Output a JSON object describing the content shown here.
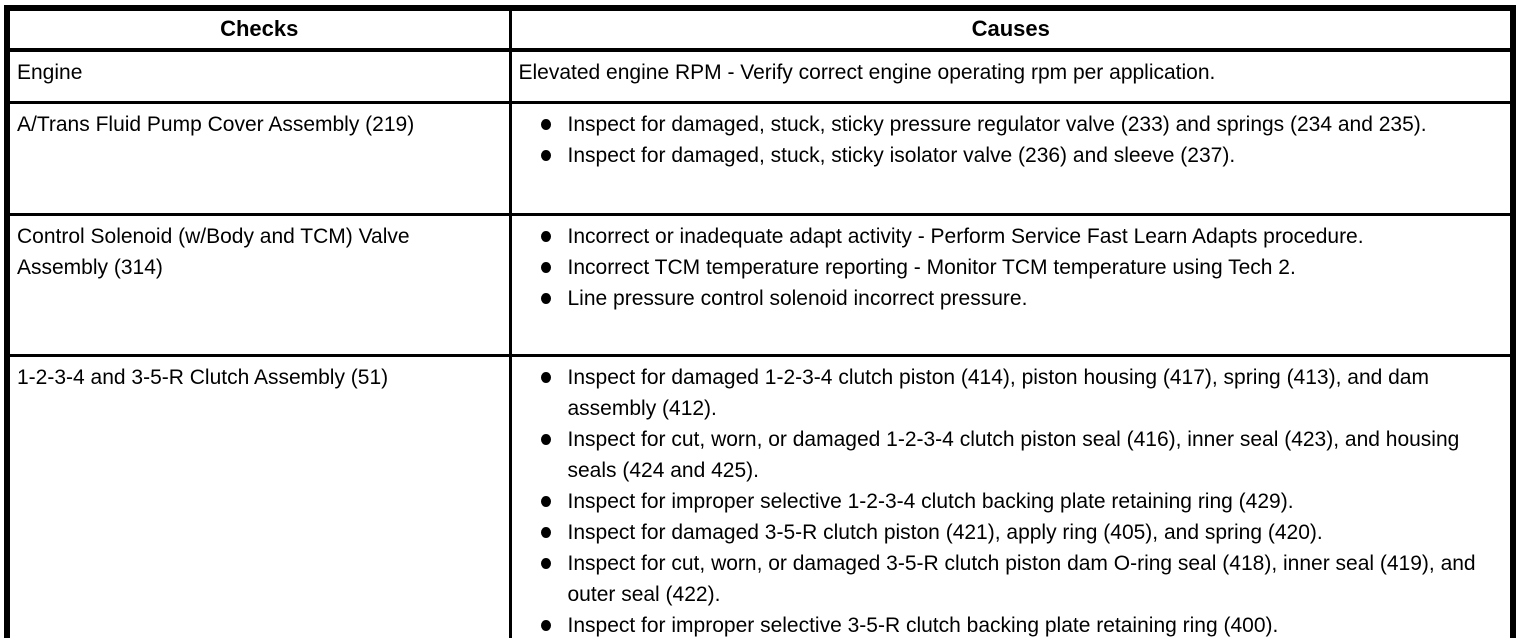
{
  "table": {
    "headers": [
      "Checks",
      "Causes"
    ],
    "rows": [
      {
        "check": "Engine",
        "bulleted": false,
        "causes": [
          "Elevated engine RPM - Verify correct engine operating rpm per application."
        ]
      },
      {
        "check": "A/Trans Fluid Pump Cover Assembly (219)",
        "bulleted": true,
        "causes": [
          "Inspect for damaged, stuck, sticky pressure regulator valve (233) and springs (234 and 235).",
          "Inspect for damaged, stuck, sticky isolator valve (236) and sleeve (237)."
        ]
      },
      {
        "check": "Control Solenoid (w/Body and TCM) Valve Assembly (314)",
        "bulleted": true,
        "causes": [
          "Incorrect or inadequate adapt activity - Perform Service Fast Learn Adapts procedure.",
          "Incorrect TCM temperature reporting - Monitor TCM temperature using Tech 2.",
          "Line pressure control solenoid incorrect pressure."
        ]
      },
      {
        "check": "1-2-3-4 and 3-5-R Clutch Assembly (51)",
        "bulleted": true,
        "causes": [
          "Inspect for damaged 1-2-3-4 clutch piston (414), piston housing (417), spring (413), and dam assembly (412).",
          "Inspect for cut, worn, or damaged 1-2-3-4 clutch piston seal (416), inner seal (423), and housing seals (424 and 425).",
          "Inspect for improper selective 1-2-3-4 clutch backing plate retaining ring (429).",
          "Inspect for damaged 3-5-R clutch piston (421), apply ring (405), and spring (420).",
          "Inspect for cut, worn, or damaged 3-5-R clutch piston dam O-ring seal (418), inner seal (419), and outer seal (422).",
          "Inspect for improper selective 3-5-R clutch backing plate retaining ring (400)."
        ]
      }
    ]
  }
}
